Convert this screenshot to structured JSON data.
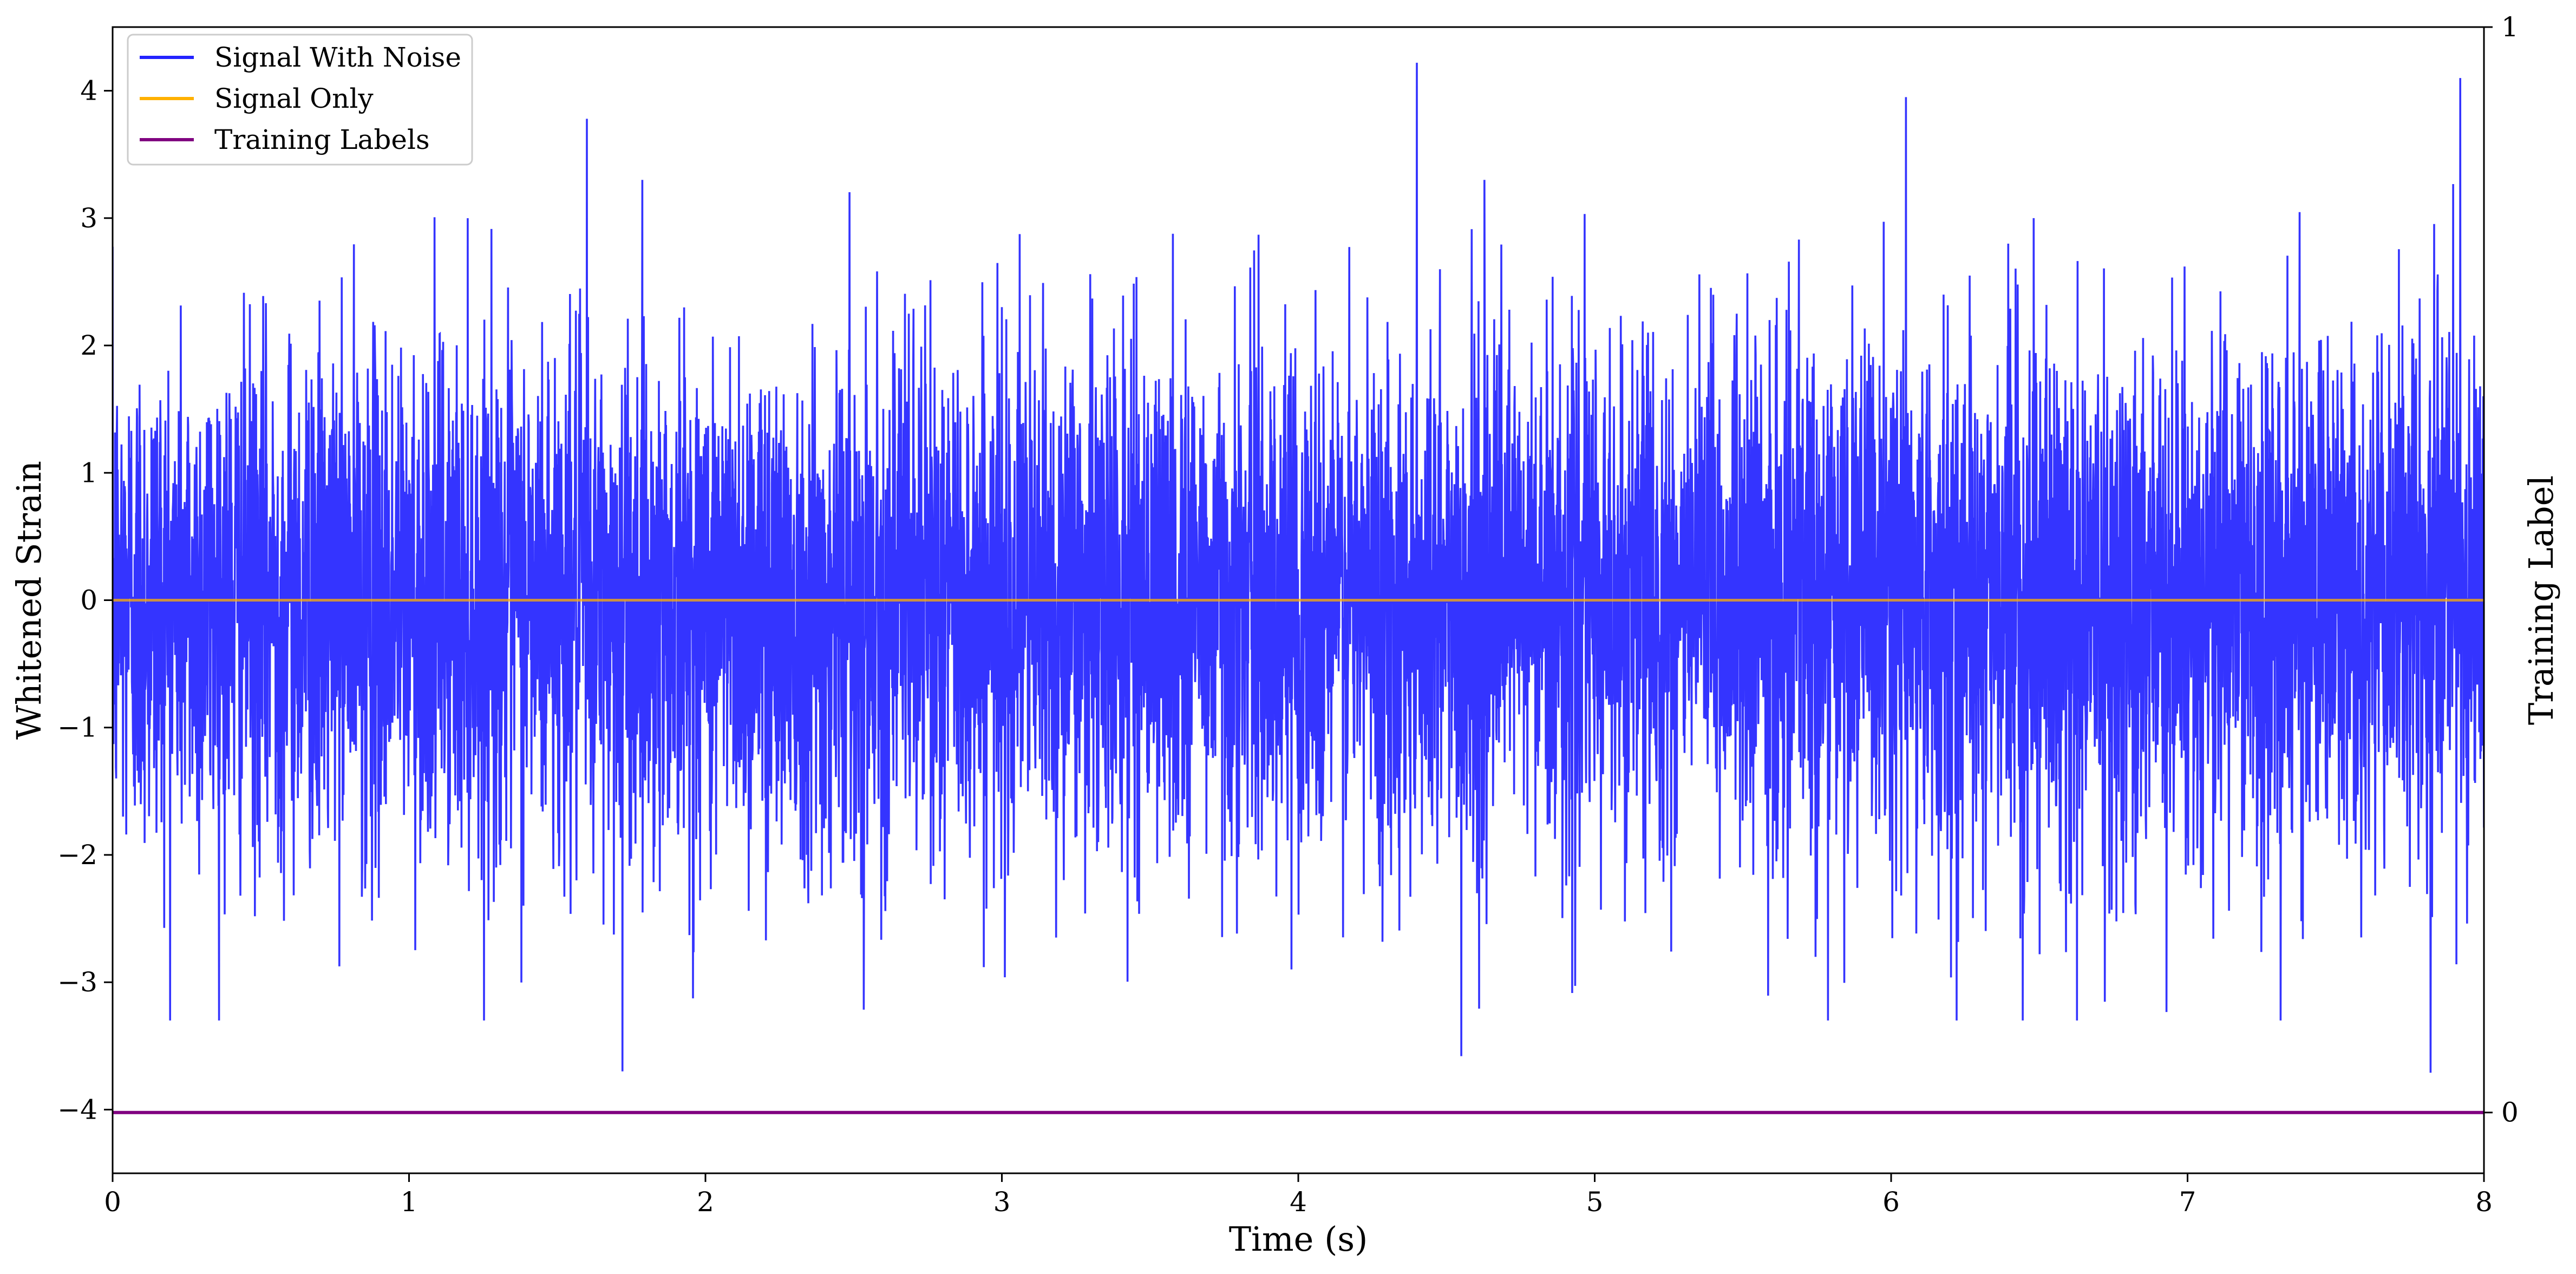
{
  "chart_data": {
    "type": "line",
    "xlabel": "Time (s)",
    "ylabel": "Whitened Strain",
    "y2label": "Training Label",
    "xlim": [
      0,
      8
    ],
    "ylim": [
      -4.5,
      4.5
    ],
    "y2lim": [
      -0.056,
      1.0
    ],
    "xticks": [
      "0",
      "1",
      "2",
      "3",
      "4",
      "5",
      "6",
      "7",
      "8"
    ],
    "yticks": [
      "4",
      "3",
      "2",
      "1",
      "0",
      "−1",
      "−2",
      "−3",
      "−4"
    ],
    "y2ticks": [
      "1",
      "0"
    ],
    "grid": false,
    "legend": {
      "position": "top-left",
      "entries": [
        {
          "name": "Signal With Noise",
          "color": "#2323ff"
        },
        {
          "name": "Signal Only",
          "color": "#ffb000"
        },
        {
          "name": "Training Labels",
          "color": "#800080"
        }
      ]
    },
    "series": [
      {
        "name": "Signal With Noise",
        "color": "#2323ff",
        "description_stats": {
          "mean": 0,
          "std": 1.0,
          "max": 4.22,
          "min": -3.71
        },
        "peaks": [
          {
            "x": 1.6,
            "y": 3.78
          },
          {
            "x": 4.4,
            "y": 4.22
          },
          {
            "x": 6.05,
            "y": 3.95
          },
          {
            "x": 7.92,
            "y": 4.1
          },
          {
            "x": 1.72,
            "y": -3.7
          },
          {
            "x": 4.55,
            "y": -3.58
          },
          {
            "x": 7.82,
            "y": -3.71
          }
        ]
      },
      {
        "name": "Signal Only",
        "color": "#ffb000",
        "x": [
          0,
          8
        ],
        "y": [
          0,
          0
        ]
      },
      {
        "name": "Training Labels",
        "color": "#800080",
        "axis": "right",
        "x": [
          0,
          8
        ],
        "y": [
          0,
          0
        ]
      }
    ]
  }
}
